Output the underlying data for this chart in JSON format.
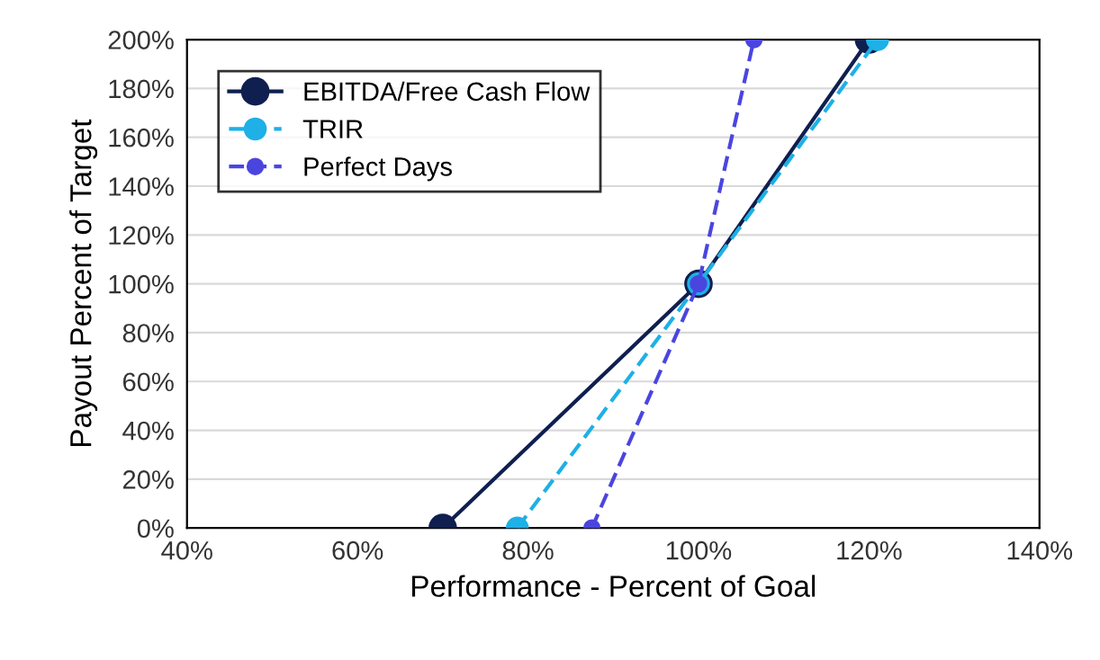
{
  "chart_data": {
    "type": "line",
    "xlabel": "Performance - Percent of Goal",
    "ylabel": "Payout Percent of Target",
    "series": [
      {
        "name": "EBITDA/Free Cash Flow",
        "color": "#0f1f4f",
        "line_style": "solid",
        "x": [
          70,
          100,
          120
        ],
        "values": [
          0,
          100,
          200
        ]
      },
      {
        "name": "TRIR",
        "color": "#1eb0e6",
        "line_style": "dashed",
        "x": [
          78.75,
          100,
          121
        ],
        "values": [
          0,
          100,
          200
        ]
      },
      {
        "name": "Perfect Days",
        "color": "#4b45e0",
        "line_style": "dashed",
        "x": [
          87.5,
          100,
          106.5
        ],
        "values": [
          0,
          100,
          200
        ]
      }
    ],
    "xlim": [
      40,
      140
    ],
    "ylim": [
      0,
      200
    ],
    "xticks": [
      {
        "value": 40,
        "label": "40%"
      },
      {
        "value": 60,
        "label": "60%"
      },
      {
        "value": 80,
        "label": "80%"
      },
      {
        "value": 100,
        "label": "100%"
      },
      {
        "value": 120,
        "label": "120%"
      },
      {
        "value": 140,
        "label": "140%"
      }
    ],
    "yticks": [
      {
        "value": 0,
        "label": "0%"
      },
      {
        "value": 20,
        "label": "20%"
      },
      {
        "value": 40,
        "label": "40%"
      },
      {
        "value": 60,
        "label": "60%"
      },
      {
        "value": 80,
        "label": "80%"
      },
      {
        "value": 100,
        "label": "100%"
      },
      {
        "value": 120,
        "label": "120%"
      },
      {
        "value": 140,
        "label": "140%"
      },
      {
        "value": 160,
        "label": "160%"
      },
      {
        "value": 180,
        "label": "180%"
      },
      {
        "value": 200,
        "label": "200%"
      }
    ],
    "grid": "y",
    "legend": "top left",
    "marker": "circle"
  }
}
